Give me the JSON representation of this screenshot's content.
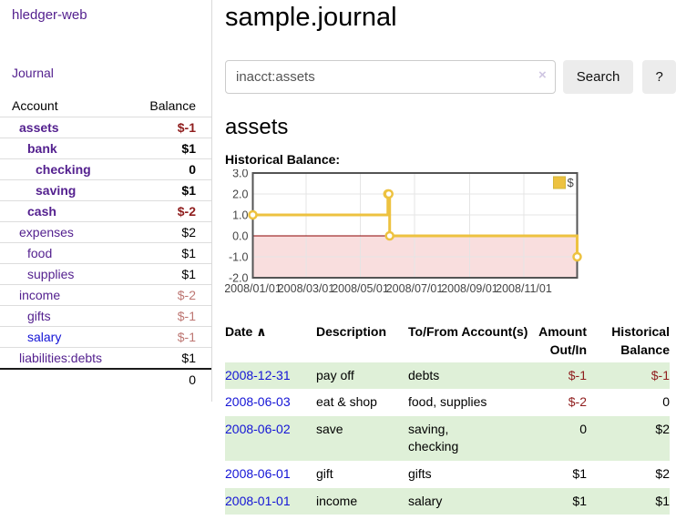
{
  "app": {
    "brand": "hledger-web"
  },
  "sidebar": {
    "nav_journal": "Journal",
    "accounts_table": {
      "header_account": "Account",
      "header_balance": "Balance",
      "rows": [
        {
          "name": "assets",
          "balance": "$-1"
        },
        {
          "name": "bank",
          "balance": "$1"
        },
        {
          "name": "checking",
          "balance": "0"
        },
        {
          "name": "saving",
          "balance": "$1"
        },
        {
          "name": "cash",
          "balance": "$-2"
        },
        {
          "name": "expenses",
          "balance": "$2"
        },
        {
          "name": "food",
          "balance": "$1"
        },
        {
          "name": "supplies",
          "balance": "$1"
        },
        {
          "name": "income",
          "balance": "$-2"
        },
        {
          "name": "gifts",
          "balance": "$-1"
        },
        {
          "name": "salary",
          "balance": "$-1"
        },
        {
          "name": "liabilities:debts",
          "balance": "$1"
        }
      ],
      "total": "0"
    }
  },
  "main": {
    "title": "sample.journal",
    "search": {
      "value": "inacct:assets",
      "clear_icon": "×",
      "search_button": "Search",
      "help_button": "?"
    },
    "section_title": "assets",
    "chart_label": "Historical Balance:"
  },
  "chart_data": {
    "type": "line",
    "step": true,
    "title": "Historical Balance:",
    "series": [
      {
        "name": "$",
        "color": "#edc240",
        "points": [
          [
            "2008-01-01",
            1
          ],
          [
            "2008-06-01",
            2
          ],
          [
            "2008-06-02",
            2
          ],
          [
            "2008-06-03",
            0
          ],
          [
            "2008-12-31",
            -1
          ]
        ]
      }
    ],
    "xlim": [
      "2008-01-01",
      "2008-12-31"
    ],
    "ylim": [
      -2,
      3
    ],
    "x_ticks": [
      "2008/01/01",
      "2008/03/01",
      "2008/05/01",
      "2008/07/01",
      "2008/09/01",
      "2008/11/01"
    ],
    "y_ticks": [
      "3.0",
      "2.0",
      "1.0",
      "0.0",
      "-1.0",
      "-2.0"
    ],
    "grid": true,
    "legend_position": "top-right",
    "colors": {
      "line": "#edc240",
      "marker_fill": "#ffffff",
      "negative_region": "#f9dede",
      "zero_line": "#8b0000",
      "gridline": "#e5e5e5",
      "border": "#545454",
      "tick_text": "#444444"
    }
  },
  "register": {
    "headers": {
      "date": "Date",
      "sort_indicator": "∧",
      "description": "Description",
      "accounts": "To/From Account(s)",
      "amount": "Amount Out/In",
      "balance": "Historical Balance"
    },
    "rows": [
      {
        "date": "2008-12-31",
        "description": "pay off",
        "accounts": "debts",
        "amount": "$-1",
        "balance": "$-1"
      },
      {
        "date": "2008-06-03",
        "description": "eat & shop",
        "accounts": "food, supplies",
        "amount": "$-2",
        "balance": "0"
      },
      {
        "date": "2008-06-02",
        "description": "save",
        "accounts": "saving, checking",
        "amount": "0",
        "balance": "$2"
      },
      {
        "date": "2008-06-01",
        "description": "gift",
        "accounts": "gifts",
        "amount": "$1",
        "balance": "$2"
      },
      {
        "date": "2008-01-01",
        "description": "income",
        "accounts": "salary",
        "amount": "$1",
        "balance": "$1"
      }
    ]
  }
}
